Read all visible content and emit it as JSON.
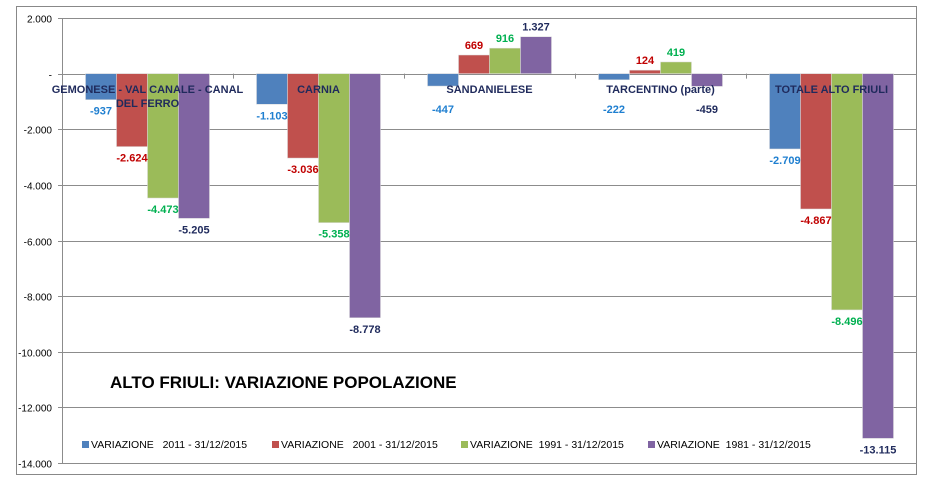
{
  "chart_data": {
    "type": "bar",
    "title": "ALTO FRIULI: VARIAZIONE POPOLAZIONE",
    "categories": [
      "GEMONESE - VAL CANALE - CANAL DEL FERRO",
      "CARNIA",
      "SANDANIELESE",
      "TARCENTINO (parte)",
      "TOTALE ALTO FRIULI"
    ],
    "series": [
      {
        "name": "VARIAZIONE   2011 - 31/12/2015",
        "color": "#4F81BD",
        "label_color": "#1F7FD0",
        "values": [
          -937,
          -1103,
          -447,
          -222,
          -2709
        ]
      },
      {
        "name": "VARIAZIONE   2001 - 31/12/2015",
        "color": "#C0504D",
        "label_color": "#C00000",
        "values": [
          -2624,
          -3036,
          669,
          124,
          -4867
        ]
      },
      {
        "name": "VARIAZIONE  1991 - 31/12/2015",
        "color": "#9BBB59",
        "label_color": "#00B050",
        "values": [
          -4473,
          -5358,
          916,
          419,
          -8496
        ]
      },
      {
        "name": "VARIAZIONE  1981 - 31/12/2015",
        "color": "#8064A2",
        "label_color": "#1F2A5C",
        "values": [
          -5205,
          -8778,
          1327,
          -459,
          -13115
        ]
      }
    ],
    "ylim": [
      -14000,
      2000
    ],
    "yticks": [
      2000,
      0,
      -2000,
      -4000,
      -6000,
      -8000,
      -10000,
      -12000,
      -14000
    ],
    "ytick_labels": [
      "2.000",
      "-",
      "-2.000",
      "-4.000",
      "-6.000",
      "-8.000",
      "-10.000",
      "-12.000",
      "-14.000"
    ],
    "grid": true,
    "legend": "bottom"
  }
}
